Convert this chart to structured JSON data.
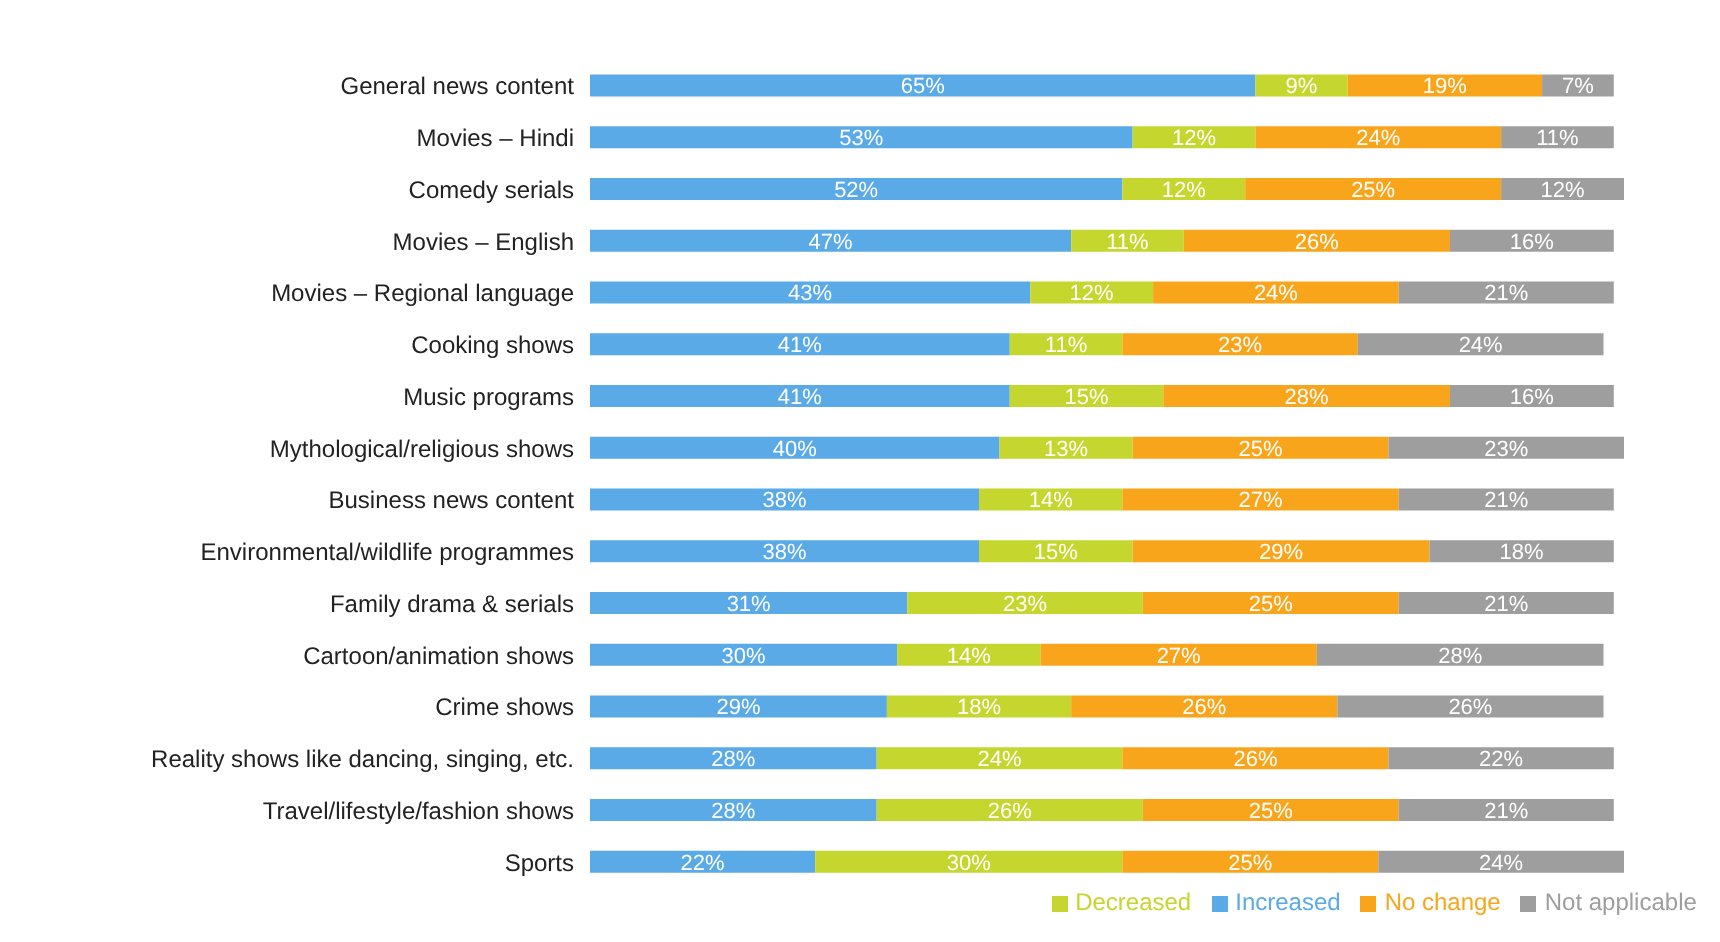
{
  "chart_data": {
    "type": "bar",
    "orientation": "horizontal",
    "stacked": true,
    "legend": "bottom",
    "categories": [
      "General news content",
      "Movies – Hindi",
      "Comedy serials",
      "Movies – English",
      "Movies – Regional language",
      "Cooking shows",
      "Music programs",
      "Mythological/religious shows",
      "Business news content",
      "Environmental/wildlife programmes",
      "Family drama & serials",
      "Cartoon/animation shows",
      "Crime shows",
      "Reality shows like dancing, singing, etc.",
      "Travel/lifestyle/fashion shows",
      "Sports"
    ],
    "series": [
      {
        "name": "Increased",
        "color": "#5aaae8",
        "values": [
          65,
          53,
          52,
          47,
          43,
          41,
          41,
          40,
          38,
          38,
          31,
          30,
          29,
          28,
          28,
          22
        ],
        "value_labels": [
          "65%",
          "53%",
          "52%",
          "47%",
          "43%",
          "41%",
          "41%",
          "40%",
          "38%",
          "38%",
          "31%",
          "30%",
          "29%",
          "28%",
          "28%",
          "22%"
        ]
      },
      {
        "name": "Decreased",
        "color": "#c5d62e",
        "values": [
          9,
          12,
          12,
          11,
          12,
          11,
          15,
          13,
          14,
          15,
          23,
          14,
          18,
          24,
          26,
          30
        ],
        "value_labels": [
          "9%",
          "12%",
          "12%",
          "11%",
          "12%",
          "11%",
          "15%",
          "13%",
          "14%",
          "15%",
          "23%",
          "14%",
          "18%",
          "24%",
          "26%",
          "30%"
        ]
      },
      {
        "name": "No change",
        "color": "#f9a51b",
        "values": [
          19,
          24,
          25,
          26,
          24,
          23,
          28,
          25,
          27,
          29,
          25,
          27,
          26,
          26,
          25,
          25
        ],
        "value_labels": [
          "19%",
          "24%",
          "25%",
          "26%",
          "24%",
          "23%",
          "28%",
          "25%",
          "27%",
          "29%",
          "25%",
          "27%",
          "26%",
          "26%",
          "25%",
          "25%"
        ]
      },
      {
        "name": "Not applicable",
        "color": "#9e9e9e",
        "values": [
          7,
          11,
          12,
          16,
          21,
          24,
          16,
          23,
          21,
          18,
          21,
          28,
          26,
          22,
          21,
          24
        ],
        "value_labels": [
          "7%",
          "11%",
          "12%",
          "16%",
          "21%",
          "24%",
          "16%",
          "23%",
          "21%",
          "18%",
          "21%",
          "28%",
          "26%",
          "22%",
          "21%",
          "24%"
        ]
      }
    ]
  }
}
